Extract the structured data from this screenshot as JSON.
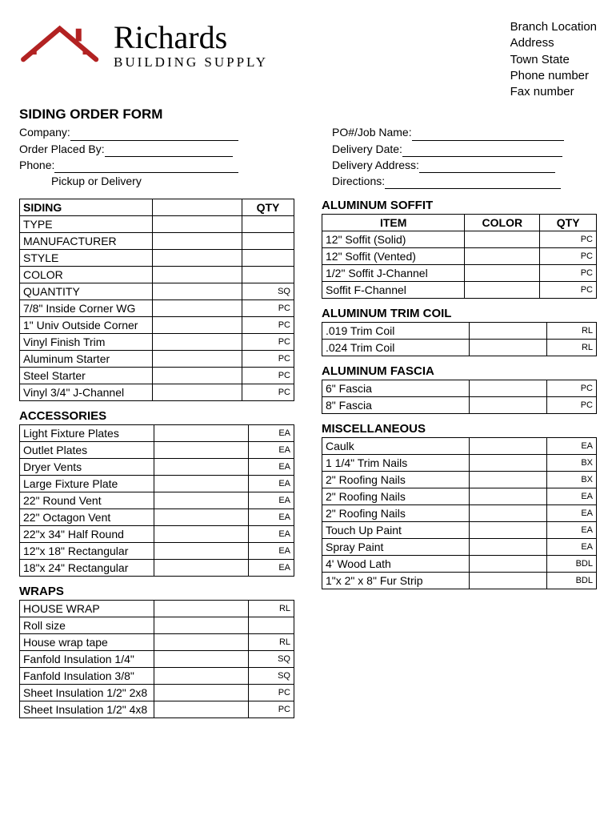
{
  "logo": {
    "main": "Richards",
    "sub": "BUILDING SUPPLY"
  },
  "branch": {
    "location": "Branch Location",
    "address": "Address",
    "town_state": "Town State",
    "phone": "Phone number",
    "fax": "Fax number"
  },
  "form_title": "SIDING ORDER FORM",
  "meta_left": {
    "company": "Company:",
    "order_placed_by": "Order Placed By:",
    "phone": "Phone:",
    "pickup_delivery": "Pickup    or  Delivery"
  },
  "meta_right": {
    "po_job": "PO#/Job Name:",
    "delivery_date": "Delivery Date:",
    "delivery_address": "Delivery Address:",
    "directions": "Directions:"
  },
  "siding": {
    "title": "SIDING",
    "qty_header": "QTY",
    "rows": [
      {
        "label": "TYPE",
        "unit": ""
      },
      {
        "label": "MANUFACTURER",
        "unit": ""
      },
      {
        "label": "STYLE",
        "unit": ""
      },
      {
        "label": "COLOR",
        "unit": ""
      },
      {
        "label": "QUANTITY",
        "unit": "SQ"
      },
      {
        "label": "7/8\" Inside Corner WG",
        "unit": "PC"
      },
      {
        "label": "1\" Univ Outside Corner",
        "unit": "PC"
      },
      {
        "label": "Vinyl Finish Trim",
        "unit": "PC"
      },
      {
        "label": "Aluminum Starter",
        "unit": "PC"
      },
      {
        "label": "Steel Starter",
        "unit": "PC"
      },
      {
        "label": "Vinyl 3/4\" J-Channel",
        "unit": "PC"
      }
    ]
  },
  "accessories": {
    "title": "ACCESSORIES",
    "rows": [
      {
        "label": "Light Fixture Plates",
        "unit": "EA"
      },
      {
        "label": "Outlet Plates",
        "unit": "EA"
      },
      {
        "label": "Dryer Vents",
        "unit": "EA"
      },
      {
        "label": "Large Fixture Plate",
        "unit": "EA"
      },
      {
        "label": "22\" Round Vent",
        "unit": "EA"
      },
      {
        "label": "22\" Octagon Vent",
        "unit": "EA"
      },
      {
        "label": "22\"x 34\" Half Round",
        "unit": "EA"
      },
      {
        "label": "12\"x 18\" Rectangular",
        "unit": "EA"
      },
      {
        "label": "18\"x 24\" Rectangular",
        "unit": "EA"
      }
    ]
  },
  "wraps": {
    "title": "WRAPS",
    "rows": [
      {
        "label": "HOUSE WRAP",
        "unit": "RL"
      },
      {
        "label": "Roll size",
        "unit": ""
      },
      {
        "label": "House wrap tape",
        "unit": "RL"
      },
      {
        "label": "Fanfold Insulation 1/4\"",
        "unit": "SQ"
      },
      {
        "label": "Fanfold Insulation 3/8\"",
        "unit": "SQ"
      },
      {
        "label": "Sheet Insulation 1/2\" 2x8",
        "unit": "PC"
      },
      {
        "label": "Sheet Insulation 1/2\" 4x8",
        "unit": "PC"
      }
    ]
  },
  "soffit": {
    "title": "ALUMINUM SOFFIT",
    "item_header": "ITEM",
    "color_header": "COLOR",
    "qty_header": "QTY",
    "rows": [
      {
        "label": "12\" Soffit (Solid)",
        "unit": "PC"
      },
      {
        "label": "12\" Soffit (Vented)",
        "unit": "PC"
      },
      {
        "label": "1/2\" Soffit J-Channel",
        "unit": "PC"
      },
      {
        "label": "Soffit F-Channel",
        "unit": "PC"
      }
    ]
  },
  "trimcoil": {
    "title": "ALUMINUM TRIM COIL",
    "rows": [
      {
        "label": ".019 Trim Coil",
        "unit": "RL"
      },
      {
        "label": ".024 Trim Coil",
        "unit": "RL"
      }
    ]
  },
  "fascia": {
    "title": "ALUMINUM FASCIA",
    "rows": [
      {
        "label": "6\" Fascia",
        "unit": "PC"
      },
      {
        "label": "8\" Fascia",
        "unit": "PC"
      }
    ]
  },
  "misc": {
    "title": "MISCELLANEOUS",
    "rows": [
      {
        "label": "Caulk",
        "unit": "EA"
      },
      {
        "label": "1 1/4\" Trim Nails",
        "unit": "BX"
      },
      {
        "label": "2\" Roofing Nails",
        "unit": "BX"
      },
      {
        "label": "2\" Roofing Nails",
        "unit": "EA"
      },
      {
        "label": "2\" Roofing Nails",
        "unit": "EA"
      },
      {
        "label": "Touch Up Paint",
        "unit": "EA"
      },
      {
        "label": "Spray Paint",
        "unit": "EA"
      },
      {
        "label": "4' Wood Lath",
        "unit": "BDL"
      },
      {
        "label": "1\"x 2\" x 8\" Fur Strip",
        "unit": "BDL"
      }
    ]
  },
  "colors": {
    "logo_red": "#b22222",
    "text": "#000000"
  }
}
